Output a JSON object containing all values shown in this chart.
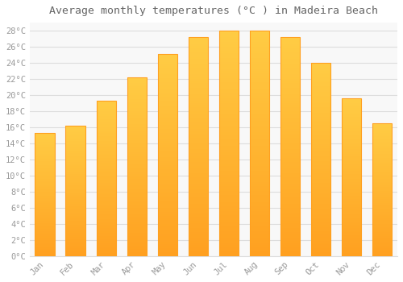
{
  "months": [
    "Jan",
    "Feb",
    "Mar",
    "Apr",
    "May",
    "Jun",
    "Jul",
    "Aug",
    "Sep",
    "Oct",
    "Nov",
    "Dec"
  ],
  "values": [
    15.3,
    16.2,
    19.3,
    22.2,
    25.1,
    27.2,
    28.0,
    28.0,
    27.2,
    24.0,
    19.6,
    16.5
  ],
  "bar_color_top": "#FFCC44",
  "bar_color_bottom": "#FFA020",
  "bar_edge_color": "#FFA020",
  "title": "Average monthly temperatures (°C ) in Madeira Beach",
  "title_fontsize": 9.5,
  "title_color": "#666666",
  "ylim": [
    0,
    29
  ],
  "ytick_max": 28,
  "ytick_step": 2,
  "background_color": "#ffffff",
  "plot_bg_color": "#f8f8f8",
  "grid_color": "#dddddd",
  "tick_label_color": "#999999",
  "font_family": "monospace",
  "bar_width": 0.65
}
